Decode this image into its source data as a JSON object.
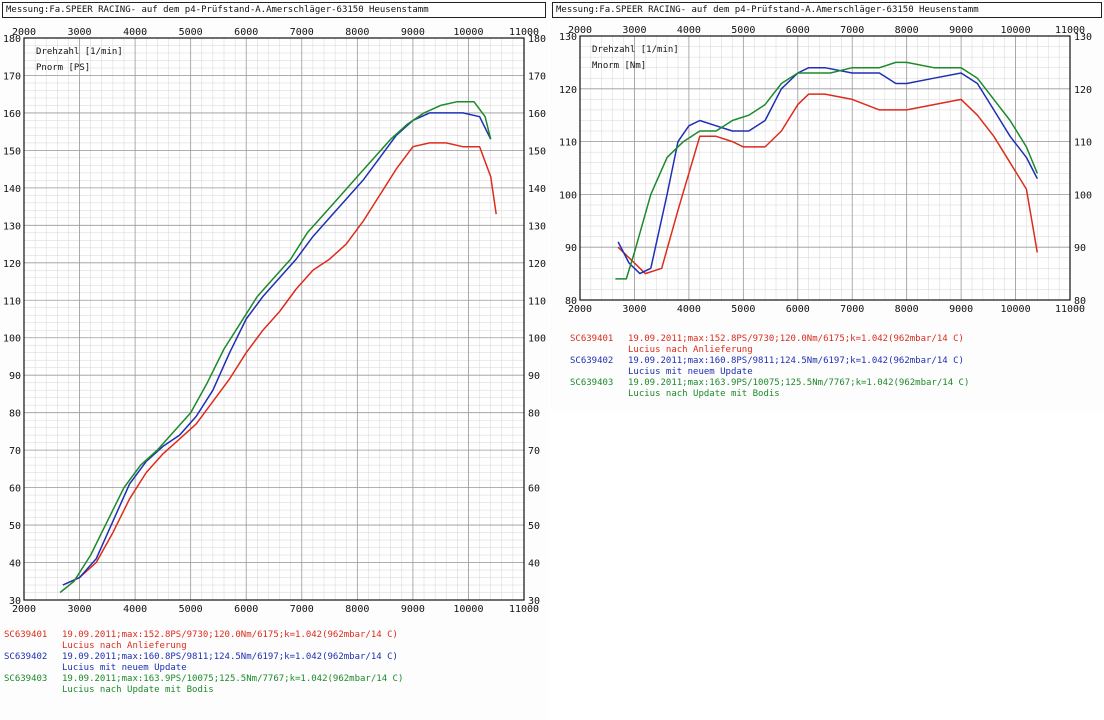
{
  "header": "Messung:Fa.SPEER RACING- auf dem p4-Prüfstand-A.Amerschläger-63150 Heusenstamm",
  "colors": {
    "red": "#dd2b1c",
    "blue": "#1e2fb5",
    "green": "#1b8a2a",
    "grid": "#9a9a9a",
    "axis": "#111111"
  },
  "legend": [
    {
      "id": "SC639401",
      "line1": "19.09.2011;max:152.8PS/9730;120.0Nm/6175;k=1.042(962mbar/14 C)",
      "line2": "Lucius nach Anlieferung",
      "color": "#dd2b1c"
    },
    {
      "id": "SC639402",
      "line1": "19.09.2011;max:160.8PS/9811;124.5Nm/6197;k=1.042(962mbar/14 C)",
      "line2": "Lucius mit neuem Update",
      "color": "#1e2fb5"
    },
    {
      "id": "SC639403",
      "line1": "19.09.2011;max:163.9PS/10075;125.5Nm/7767;k=1.042(962mbar/14 C)",
      "line2": "Lucius nach Update mit Bodis",
      "color": "#1b8a2a"
    }
  ],
  "chart_data": [
    {
      "type": "line",
      "xlabel": "Drehzahl [1/min]",
      "ylabel": "Pnorm [PS]",
      "xlim": [
        2000,
        11000
      ],
      "ylim": [
        30,
        180
      ],
      "x_ticks": [
        2000,
        3000,
        4000,
        5000,
        6000,
        7000,
        8000,
        9000,
        10000,
        11000
      ],
      "y_ticks": [
        30,
        40,
        50,
        60,
        70,
        80,
        90,
        100,
        110,
        120,
        130,
        140,
        150,
        160,
        170,
        180
      ],
      "grid": true,
      "series": [
        {
          "name": "SC639401",
          "color": "#dd2b1c",
          "x": [
            2700,
            3000,
            3300,
            3600,
            3900,
            4200,
            4500,
            4800,
            5100,
            5400,
            5700,
            6000,
            6300,
            6600,
            6900,
            7200,
            7500,
            7800,
            8100,
            8400,
            8700,
            9000,
            9300,
            9600,
            9900,
            10200,
            10400,
            10500
          ],
          "y": [
            34,
            36,
            40,
            48,
            57,
            64,
            69,
            73,
            77,
            83,
            89,
            96,
            102,
            107,
            113,
            118,
            121,
            125,
            131,
            138,
            145,
            151,
            152,
            152,
            151,
            151,
            143,
            133
          ]
        },
        {
          "name": "SC639402",
          "color": "#1e2fb5",
          "x": [
            2700,
            3000,
            3300,
            3600,
            3900,
            4200,
            4500,
            4800,
            5100,
            5400,
            5700,
            6000,
            6300,
            6600,
            6900,
            7200,
            7500,
            7800,
            8100,
            8400,
            8700,
            9000,
            9300,
            9600,
            9900,
            10200,
            10400
          ],
          "y": [
            34,
            36,
            41,
            51,
            61,
            67,
            71,
            74,
            79,
            86,
            96,
            105,
            111,
            116,
            121,
            127,
            132,
            137,
            142,
            148,
            154,
            158,
            160,
            160,
            160,
            159,
            153
          ]
        },
        {
          "name": "SC639403",
          "color": "#1b8a2a",
          "x": [
            2650,
            2900,
            3200,
            3500,
            3800,
            4100,
            4400,
            4700,
            5000,
            5300,
            5600,
            5900,
            6200,
            6500,
            6800,
            7100,
            7400,
            7700,
            8000,
            8300,
            8600,
            8900,
            9200,
            9500,
            9800,
            10100,
            10300,
            10400
          ],
          "y": [
            32,
            35,
            42,
            51,
            60,
            66,
            70,
            75,
            80,
            88,
            97,
            104,
            111,
            116,
            121,
            128,
            133,
            138,
            143,
            148,
            153,
            157,
            160,
            162,
            163,
            163,
            159,
            153
          ]
        }
      ]
    },
    {
      "type": "line",
      "xlabel": "Drehzahl [1/min]",
      "ylabel": "Mnorm [Nm]",
      "xlim": [
        2000,
        11000
      ],
      "ylim": [
        80,
        130
      ],
      "x_ticks": [
        2000,
        3000,
        4000,
        5000,
        6000,
        7000,
        8000,
        9000,
        10000,
        11000
      ],
      "y_ticks": [
        80,
        90,
        100,
        110,
        120,
        130
      ],
      "grid": true,
      "series": [
        {
          "name": "SC639401",
          "color": "#dd2b1c",
          "x": [
            2700,
            3000,
            3200,
            3500,
            3800,
            4200,
            4500,
            4800,
            5000,
            5400,
            5700,
            6000,
            6200,
            6500,
            7000,
            7500,
            8000,
            8500,
            9000,
            9300,
            9600,
            9900,
            10200,
            10400
          ],
          "y": [
            90,
            87,
            85,
            86,
            97,
            111,
            111,
            110,
            109,
            109,
            112,
            117,
            119,
            119,
            118,
            116,
            116,
            117,
            118,
            115,
            111,
            106,
            101,
            89
          ]
        },
        {
          "name": "SC639402",
          "color": "#1e2fb5",
          "x": [
            2700,
            2900,
            3100,
            3300,
            3600,
            3800,
            4000,
            4200,
            4500,
            4800,
            5100,
            5400,
            5700,
            6000,
            6200,
            6500,
            7000,
            7500,
            7800,
            8000,
            8500,
            9000,
            9300,
            9600,
            9900,
            10200,
            10400
          ],
          "y": [
            91,
            87,
            85,
            86,
            100,
            110,
            113,
            114,
            113,
            112,
            112,
            114,
            120,
            123,
            124,
            124,
            123,
            123,
            121,
            121,
            122,
            123,
            121,
            116,
            111,
            107,
            103
          ]
        },
        {
          "name": "SC639403",
          "color": "#1b8a2a",
          "x": [
            2650,
            2850,
            3000,
            3300,
            3600,
            3900,
            4200,
            4500,
            4800,
            5100,
            5400,
            5700,
            6000,
            6300,
            6600,
            7000,
            7500,
            7800,
            8000,
            8500,
            9000,
            9300,
            9600,
            9900,
            10200,
            10400
          ],
          "y": [
            84,
            84,
            89,
            100,
            107,
            110,
            112,
            112,
            114,
            115,
            117,
            121,
            123,
            123,
            123,
            124,
            124,
            125,
            125,
            124,
            124,
            122,
            118,
            114,
            109,
            104
          ]
        }
      ]
    }
  ]
}
